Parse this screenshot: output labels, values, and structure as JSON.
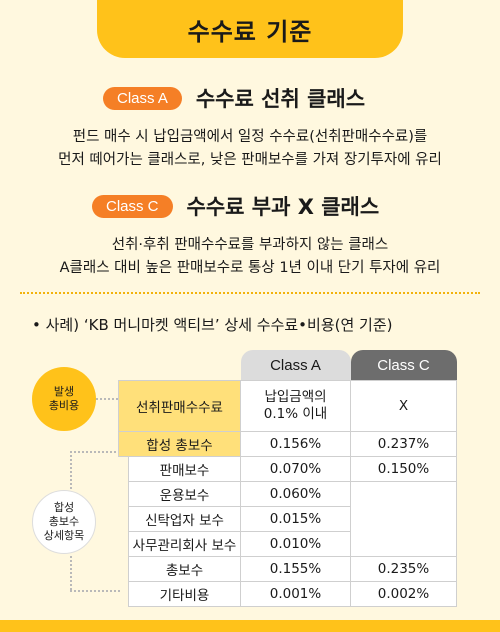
{
  "title": "수수료 기준",
  "classA": {
    "pill": "Class A",
    "name": "수수료 선취 클래스",
    "desc_line1": "펀드 매수 시 납입금액에서 일정 수수료(선취판매수수료)를",
    "desc_line2": "먼저 떼어가는 클래스로, 낮은 판매보수를 가져 장기투자에 유리"
  },
  "classC": {
    "pill": "Class C",
    "name": "수수료 부과 X 클래스",
    "desc_line1": "선취·후취 판매수수료를 부과하지 않는 클래스",
    "desc_line2": "A클래스 대비 높은 판매보수로 통상 1년 이내 단기 투자에 유리"
  },
  "example_title": "• 사례) ‘KB 머니마켓 액티브’ 상세 수수료•비용(연 기준)",
  "badge1": "발생\n총비용",
  "badge2": "합성\n총보수\n상세항목",
  "table": {
    "col_a": "Class A",
    "col_c": "Class C",
    "rows": [
      {
        "label": "선취판매수수료",
        "a": "납입금액의\n0.1% 이내",
        "c": "X"
      },
      {
        "label": "합성 총보수",
        "a": "0.156%",
        "c": "0.237%"
      },
      {
        "label": "판매보수",
        "a": "0.070%",
        "c": "0.150%"
      },
      {
        "label": "운용보수",
        "a": "0.060%",
        "c": ""
      },
      {
        "label": "신탁업자 보수",
        "a": "0.015%",
        "c": ""
      },
      {
        "label": "사무관리회사 보수",
        "a": "0.010%",
        "c": ""
      },
      {
        "label": "총보수",
        "a": "0.155%",
        "c": "0.235%"
      },
      {
        "label": "기타비용",
        "a": "0.001%",
        "c": "0.002%"
      }
    ]
  },
  "colors": {
    "accent": "#ffc21a",
    "pill": "#f57f26",
    "bg": "#fff8df"
  }
}
